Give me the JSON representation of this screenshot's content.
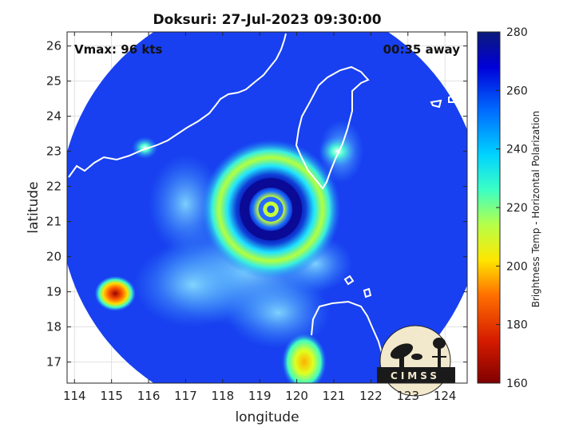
{
  "chart_data": {
    "type": "heatmap",
    "title": "Doksuri: 27-Jul-2023 09:30:00",
    "xlabel": "longitude",
    "ylabel": "latitude",
    "xlim": [
      113.8,
      124.6
    ],
    "ylim": [
      16.4,
      26.4
    ],
    "x_ticks": [
      114,
      115,
      116,
      117,
      118,
      119,
      120,
      121,
      122,
      123,
      124
    ],
    "y_ticks": [
      17,
      18,
      19,
      20,
      21,
      22,
      23,
      24,
      25,
      26
    ],
    "grid": true,
    "annotations": {
      "vmax": "Vmax: 96 kts",
      "time_away": "00:35 away"
    },
    "colorbar": {
      "label": "Brightness Temp - Horizontal Polarization",
      "min": 160,
      "max": 280,
      "ticks": [
        160,
        180,
        200,
        220,
        240,
        260,
        280
      ]
    },
    "storm_center": {
      "lon": 119.3,
      "lat": 21.35
    },
    "eye_ring_radius_deg": 0.75,
    "eyewall_outer_radius_deg": 1.3,
    "swath_radius_deg": 5.7,
    "swath_center": {
      "lon": 119.3,
      "lat": 21.4
    },
    "features": [
      {
        "name": "convective-cell-south-china-sea",
        "lon": 115.1,
        "lat": 18.95,
        "min_temp": 185
      },
      {
        "name": "convective-cell-coast",
        "lon": 115.9,
        "lat": 23.1,
        "min_temp": 225
      },
      {
        "name": "convective-band-luzon",
        "lon": 120.2,
        "lat": 17.0,
        "min_temp": 205
      },
      {
        "name": "rainband-taiwan",
        "lon": 121.1,
        "lat": 23.0,
        "min_temp": 228
      }
    ]
  },
  "logo": {
    "text": "CIMSS"
  },
  "colors": {
    "coastline": "#ffffff",
    "frame": "#262626",
    "gridline": "#d9d9d9"
  }
}
